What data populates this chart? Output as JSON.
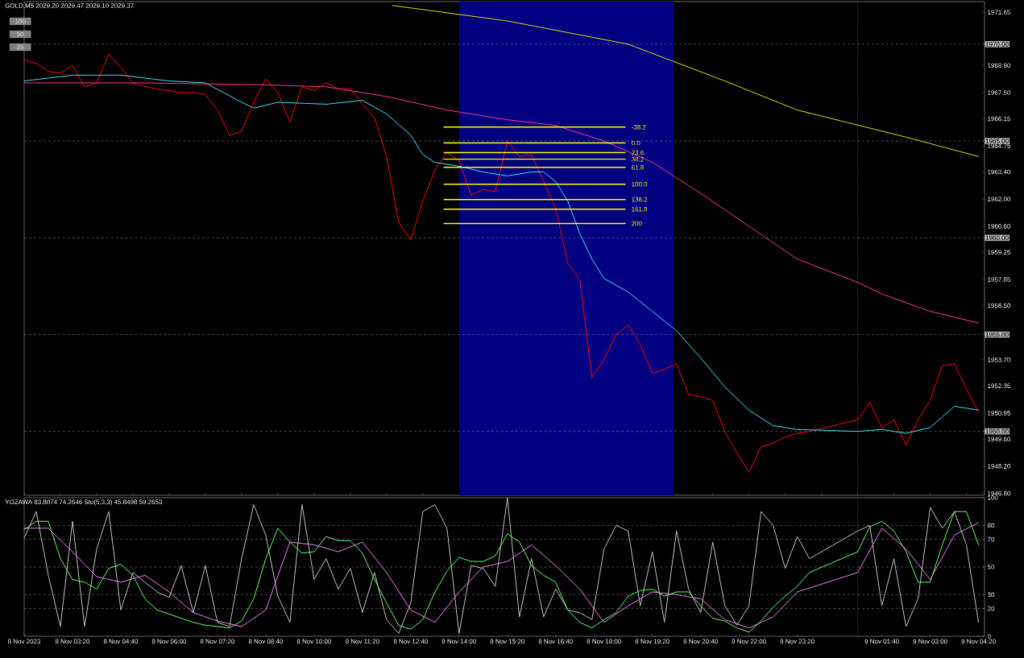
{
  "chart_data": [
    {
      "type": "line",
      "title": "GOLD,M5  2029.20 2029.47 2029.10 2029.37",
      "annotations": [
        "100",
        "50",
        "25"
      ],
      "xlim": [
        "2023-11-08T02:00",
        "2023-11-09T04:30"
      ],
      "ylim": [
        1946.7,
        1972.2
      ],
      "yticks": [
        {
          "value": 1971.65,
          "label": "1971.65"
        },
        {
          "value": 1968.9,
          "label": "1968.90"
        },
        {
          "value": 1967.5,
          "label": "1967.50"
        },
        {
          "value": 1966.15,
          "label": "1966.15"
        },
        {
          "value": 1964.75,
          "label": "1964.75"
        },
        {
          "value": 1963.4,
          "label": "1963.40"
        },
        {
          "value": 1962.0,
          "label": "1962.00"
        },
        {
          "value": 1960.6,
          "label": "1960.60"
        },
        {
          "value": 1959.25,
          "label": "1959.25"
        },
        {
          "value": 1957.85,
          "label": "1957.85"
        },
        {
          "value": 1956.5,
          "label": "1956.50"
        },
        {
          "value": 1953.7,
          "label": "1953.70"
        },
        {
          "value": 1952.35,
          "label": "1952.35"
        },
        {
          "value": 1950.95,
          "label": "1950.95"
        },
        {
          "value": 1949.6,
          "label": "1949.60"
        },
        {
          "value": 1948.2,
          "label": "1948.20"
        },
        {
          "value": 1946.8,
          "label": "1946.80"
        }
      ],
      "tick_labels": "y",
      "ref_lines": [
        {
          "axis": "y",
          "value": 1970,
          "label": "1970.00",
          "color": "#c0c0c0",
          "line_style": "dashed"
        },
        {
          "axis": "y",
          "value": 1965,
          "label": "1965.00",
          "color": "#c0c0c0",
          "line_style": "dashed"
        },
        {
          "axis": "y",
          "value": 1960,
          "label": "1960.00",
          "color": "#c0c0c0",
          "line_style": "dashed"
        },
        {
          "axis": "y",
          "value": 1955,
          "label": "1955.00",
          "color": "#c0c0c0",
          "line_style": "dashed"
        },
        {
          "axis": "y",
          "value": 1950,
          "label": "1950.00",
          "color": "#c0c0c0",
          "line_style": "dashed"
        },
        {
          "axis": "x",
          "value": "2023-11-09T01:00",
          "color": "#ffffff",
          "line_style": "dotted"
        }
      ],
      "bands": [
        {
          "axis": "x",
          "from": "2023-11-08T14:00",
          "to": "2023-11-08T19:55",
          "color": "#000080"
        }
      ],
      "x": [
        "2023-11-08T02:00",
        "2023-11-08T02:20",
        "2023-11-08T02:40",
        "2023-11-08T03:00",
        "2023-11-08T03:20",
        "2023-11-08T03:40",
        "2023-11-08T04:00",
        "2023-11-08T04:20",
        "2023-11-08T04:40",
        "2023-11-08T05:00",
        "2023-11-08T05:20",
        "2023-11-08T05:40",
        "2023-11-08T06:00",
        "2023-11-08T06:20",
        "2023-11-08T06:40",
        "2023-11-08T07:00",
        "2023-11-08T07:20",
        "2023-11-08T07:40",
        "2023-11-08T08:00",
        "2023-11-08T08:20",
        "2023-11-08T08:40",
        "2023-11-08T09:00",
        "2023-11-08T09:20",
        "2023-11-08T09:40",
        "2023-11-08T10:00",
        "2023-11-08T10:20",
        "2023-11-08T10:40",
        "2023-11-08T11:00",
        "2023-11-08T11:20",
        "2023-11-08T11:40",
        "2023-11-08T12:00",
        "2023-11-08T12:20",
        "2023-11-08T12:40",
        "2023-11-08T13:00",
        "2023-11-08T13:20",
        "2023-11-08T13:40",
        "2023-11-08T14:00",
        "2023-11-08T14:20",
        "2023-11-08T14:40",
        "2023-11-08T15:00",
        "2023-11-08T15:20",
        "2023-11-08T15:40",
        "2023-11-08T16:00",
        "2023-11-08T16:20",
        "2023-11-08T16:40",
        "2023-11-08T17:00",
        "2023-11-08T17:20",
        "2023-11-08T17:40",
        "2023-11-08T18:00",
        "2023-11-08T18:20",
        "2023-11-08T18:40",
        "2023-11-08T19:00",
        "2023-11-08T19:20",
        "2023-11-08T19:40",
        "2023-11-08T20:00",
        "2023-11-08T20:20",
        "2023-11-08T20:40",
        "2023-11-08T21:00",
        "2023-11-08T21:20",
        "2023-11-08T21:40",
        "2023-11-08T22:00",
        "2023-11-08T22:20",
        "2023-11-08T22:40",
        "2023-11-08T23:00",
        "2023-11-08T23:20",
        "2023-11-08T23:40",
        "2023-11-09T01:00",
        "2023-11-09T01:20",
        "2023-11-09T01:40",
        "2023-11-09T02:00",
        "2023-11-09T02:20",
        "2023-11-09T02:40",
        "2023-11-09T03:00",
        "2023-11-09T03:20",
        "2023-11-09T03:40",
        "2023-11-09T04:00",
        "2023-11-09T04:20"
      ],
      "series": [
        {
          "color": "#ff0000",
          "values": [
            1969.2,
            1969.0,
            1968.6,
            1968.5,
            1968.9,
            1967.8,
            1968.0,
            1969.5,
            1968.8,
            1968.0,
            1967.8,
            1967.7,
            1967.6,
            1967.5,
            1967.5,
            1967.4,
            1966.6,
            1965.3,
            1965.5,
            1967.0,
            1968.2,
            1967.5,
            1966.0,
            1967.8,
            1967.6,
            1968.0,
            1967.7,
            1967.7,
            1966.9,
            1966.2,
            1964.2,
            1960.8,
            1959.9,
            1961.9,
            1963.5,
            1964.4,
            1964.0,
            1962.2,
            1962.5,
            1962.4,
            1965.0,
            1964.2,
            1964.3,
            1962.9,
            1961.5,
            1958.7,
            1957.8,
            1952.8,
            1953.7,
            1955.0,
            1955.5,
            1954.5,
            1953.0,
            1953.2,
            1953.5,
            1951.9,
            1951.8,
            1951.6,
            1950.0,
            1948.9,
            1947.9,
            1949.2,
            1949.4,
            1949.7,
            1949.9,
            1950.0,
            1950.6,
            1951.5,
            1950.2,
            1950.6,
            1949.3,
            1950.6,
            1951.6,
            1953.4,
            1953.5,
            1952.2,
            1951.0
          ]
        },
        {
          "color": "#40e0f0",
          "x": [
            "2023-11-08T02:00",
            "2023-11-08T03:20",
            "2023-11-08T04:40",
            "2023-11-08T06:00",
            "2023-11-08T07:00",
            "2023-11-08T08:00",
            "2023-11-08T08:20",
            "2023-11-08T09:00",
            "2023-11-08T10:20",
            "2023-11-08T11:20",
            "2023-11-08T12:00",
            "2023-11-08T12:40",
            "2023-11-08T13:00",
            "2023-11-08T13:20",
            "2023-11-08T14:00",
            "2023-11-08T14:40",
            "2023-11-08T15:20",
            "2023-11-08T16:00",
            "2023-11-08T16:20",
            "2023-11-08T16:40",
            "2023-11-08T17:00",
            "2023-11-08T17:20",
            "2023-11-08T17:40",
            "2023-11-08T18:00",
            "2023-11-08T18:40",
            "2023-11-08T19:20",
            "2023-11-08T20:00",
            "2023-11-08T20:40",
            "2023-11-08T21:20",
            "2023-11-08T22:00",
            "2023-11-08T22:40",
            "2023-11-08T23:20",
            "2023-11-09T01:00",
            "2023-11-09T01:40",
            "2023-11-09T02:20",
            "2023-11-09T03:00",
            "2023-11-09T03:40",
            "2023-11-09T04:20"
          ],
          "values": [
            1968.1,
            1968.4,
            1968.4,
            1968.1,
            1968.0,
            1967.0,
            1966.7,
            1967.0,
            1966.9,
            1967.1,
            1966.4,
            1965.3,
            1964.3,
            1963.9,
            1963.7,
            1963.4,
            1963.2,
            1963.4,
            1963.4,
            1962.9,
            1961.9,
            1960.2,
            1958.9,
            1957.9,
            1957.2,
            1956.2,
            1955.2,
            1953.8,
            1952.3,
            1951.1,
            1950.3,
            1950.1,
            1950.0,
            1950.1,
            1949.9,
            1950.2,
            1951.3,
            1951.1
          ]
        },
        {
          "color": "#ff3399",
          "x": [
            "2023-11-08T02:00",
            "2023-11-08T05:20",
            "2023-11-08T08:40",
            "2023-11-08T10:20",
            "2023-11-08T12:00",
            "2023-11-08T13:40",
            "2023-11-08T15:20",
            "2023-11-08T16:40",
            "2023-11-08T18:00",
            "2023-11-08T19:20",
            "2023-11-08T20:40",
            "2023-11-08T22:00",
            "2023-11-08T23:20",
            "2023-11-09T01:00",
            "2023-11-09T01:40",
            "2023-11-09T03:00",
            "2023-11-09T03:40",
            "2023-11-09T04:20"
          ],
          "values": [
            1968.0,
            1968.0,
            1967.9,
            1967.8,
            1967.3,
            1966.6,
            1966.1,
            1965.8,
            1965.0,
            1963.9,
            1962.3,
            1960.6,
            1958.9,
            1957.7,
            1957.1,
            1956.2,
            1955.9,
            1955.6
          ]
        },
        {
          "color": "#ffff00",
          "line_style": "dotted",
          "x": [
            "2023-11-08T12:10",
            "2023-11-08T15:20",
            "2023-11-08T18:40",
            "2023-11-08T21:20",
            "2023-11-08T23:20",
            "2023-11-09T02:20",
            "2023-11-09T04:20"
          ],
          "values": [
            1972.0,
            1971.2,
            1970.0,
            1968.1,
            1966.6,
            1965.2,
            1964.2
          ]
        },
        {
          "name": "-38.2",
          "color": "#ffff00",
          "x": [
            "2023-11-08T13:35",
            "2023-11-08T18:35"
          ],
          "values": [
            1965.72,
            1965.72
          ]
        },
        {
          "name": "0.0",
          "color": "#ffff00",
          "x": [
            "2023-11-08T13:35",
            "2023-11-08T18:35"
          ],
          "values": [
            1964.9,
            1964.9
          ]
        },
        {
          "name": "23.6",
          "color": "#ffff00",
          "x": [
            "2023-11-08T13:35",
            "2023-11-08T18:35"
          ],
          "values": [
            1964.4,
            1964.4
          ]
        },
        {
          "name": "38.2",
          "color": "#ffff00",
          "x": [
            "2023-11-08T13:35",
            "2023-11-08T18:35"
          ],
          "values": [
            1964.06,
            1964.06
          ]
        },
        {
          "name": "61.8",
          "color": "#ffff00",
          "x": [
            "2023-11-08T13:35",
            "2023-11-08T18:35"
          ],
          "values": [
            1963.64,
            1963.64
          ]
        },
        {
          "name": "100.0",
          "color": "#ffff00",
          "x": [
            "2023-11-08T13:35",
            "2023-11-08T18:35"
          ],
          "values": [
            1962.77,
            1962.77
          ]
        },
        {
          "name": "138.2",
          "color": "#ffff00",
          "x": [
            "2023-11-08T13:35",
            "2023-11-08T18:35"
          ],
          "values": [
            1961.98,
            1961.98
          ]
        },
        {
          "name": "161.8",
          "color": "#ffff00",
          "x": [
            "2023-11-08T13:35",
            "2023-11-08T18:35"
          ],
          "values": [
            1961.48,
            1961.48
          ]
        },
        {
          "name": "200",
          "color": "#ffff00",
          "x": [
            "2023-11-08T13:35",
            "2023-11-08T18:35"
          ],
          "values": [
            1960.74,
            1960.74
          ]
        }
      ]
    },
    {
      "type": "line",
      "title": "YOZAWA 83.8074 74.2646  Sto(5,3,3) 45.8498 59.2653",
      "xlim": [
        "2023-11-08T02:00",
        "2023-11-09T04:30"
      ],
      "ylim": [
        0,
        100
      ],
      "xticks": [
        {
          "value": "2023-11-08T02:00",
          "label": "8 Nov 2023"
        },
        {
          "value": "2023-11-08T03:20",
          "label": "8 Nov 03:20"
        },
        {
          "value": "2023-11-08T04:40",
          "label": "8 Nov 04:40"
        },
        {
          "value": "2023-11-08T06:00",
          "label": "8 Nov 06:00"
        },
        {
          "value": "2023-11-08T07:20",
          "label": "8 Nov 07:20"
        },
        {
          "value": "2023-11-08T08:40",
          "label": "8 Nov 08:40"
        },
        {
          "value": "2023-11-08T10:00",
          "label": "8 Nov 10:00"
        },
        {
          "value": "2023-11-08T11:20",
          "label": "8 Nov 11:20"
        },
        {
          "value": "2023-11-08T12:40",
          "label": "8 Nov 12:40"
        },
        {
          "value": "2023-11-08T14:00",
          "label": "8 Nov 14:00"
        },
        {
          "value": "2023-11-08T15:20",
          "label": "8 Nov 15:20"
        },
        {
          "value": "2023-11-08T16:40",
          "label": "8 Nov 16:40"
        },
        {
          "value": "2023-11-08T18:00",
          "label": "8 Nov 18:00"
        },
        {
          "value": "2023-11-08T19:20",
          "label": "8 Nov 19:20"
        },
        {
          "value": "2023-11-08T20:40",
          "label": "8 Nov 20:40"
        },
        {
          "value": "2023-11-08T22:00",
          "label": "8 Nov 22:00"
        },
        {
          "value": "2023-11-08T23:20",
          "label": "8 Nov 23:20"
        },
        {
          "value": "2023-11-09T01:40",
          "label": "9 Nov 01:40"
        },
        {
          "value": "2023-11-09T03:00",
          "label": "9 Nov 03:00"
        },
        {
          "value": "2023-11-09T04:20",
          "label": "9 Nov 04:20"
        }
      ],
      "yticks": [
        0,
        20,
        30,
        50,
        70,
        80,
        100
      ],
      "ref_lines": [
        {
          "axis": "y",
          "value": 20,
          "color": "#c0c0c0",
          "line_style": "dashed"
        },
        {
          "axis": "y",
          "value": 30,
          "color": "#c0c0c0",
          "line_style": "dashed"
        },
        {
          "axis": "y",
          "value": 50,
          "color": "#c0c0c0",
          "line_style": "dashed"
        },
        {
          "axis": "y",
          "value": 70,
          "color": "#c0c0c0",
          "line_style": "dashed"
        },
        {
          "axis": "y",
          "value": 80,
          "color": "#c0c0c0",
          "line_style": "dashed"
        },
        {
          "axis": "x",
          "value": "2023-11-09T01:00",
          "color": "#ffffff",
          "line_style": "dotted"
        }
      ],
      "x": [
        "2023-11-08T02:00",
        "2023-11-08T02:20",
        "2023-11-08T02:40",
        "2023-11-08T03:00",
        "2023-11-08T03:20",
        "2023-11-08T03:40",
        "2023-11-08T04:00",
        "2023-11-08T04:20",
        "2023-11-08T04:40",
        "2023-11-08T05:00",
        "2023-11-08T05:20",
        "2023-11-08T05:40",
        "2023-11-08T06:00",
        "2023-11-08T06:20",
        "2023-11-08T06:40",
        "2023-11-08T07:00",
        "2023-11-08T07:20",
        "2023-11-08T07:40",
        "2023-11-08T08:00",
        "2023-11-08T08:20",
        "2023-11-08T08:40",
        "2023-11-08T09:00",
        "2023-11-08T09:20",
        "2023-11-08T09:40",
        "2023-11-08T10:00",
        "2023-11-08T10:20",
        "2023-11-08T10:40",
        "2023-11-08T11:00",
        "2023-11-08T11:20",
        "2023-11-08T11:40",
        "2023-11-08T12:00",
        "2023-11-08T12:20",
        "2023-11-08T12:40",
        "2023-11-08T13:00",
        "2023-11-08T13:20",
        "2023-11-08T13:40",
        "2023-11-08T14:00",
        "2023-11-08T14:20",
        "2023-11-08T14:40",
        "2023-11-08T15:00",
        "2023-11-08T15:20",
        "2023-11-08T15:40",
        "2023-11-08T16:00",
        "2023-11-08T16:20",
        "2023-11-08T16:40",
        "2023-11-08T17:00",
        "2023-11-08T17:20",
        "2023-11-08T17:40",
        "2023-11-08T18:00",
        "2023-11-08T18:20",
        "2023-11-08T18:40",
        "2023-11-08T19:00",
        "2023-11-08T19:20",
        "2023-11-08T19:40",
        "2023-11-08T20:00",
        "2023-11-08T20:20",
        "2023-11-08T20:40",
        "2023-11-08T21:00",
        "2023-11-08T21:20",
        "2023-11-08T21:40",
        "2023-11-08T22:00",
        "2023-11-08T22:20",
        "2023-11-08T22:40",
        "2023-11-08T23:00",
        "2023-11-08T23:20",
        "2023-11-08T23:40",
        "2023-11-09T01:00",
        "2023-11-09T01:20",
        "2023-11-09T01:40",
        "2023-11-09T02:00",
        "2023-11-09T02:20",
        "2023-11-09T02:40",
        "2023-11-09T03:00",
        "2023-11-09T03:20",
        "2023-11-09T03:40",
        "2023-11-09T04:00",
        "2023-11-09T04:20"
      ],
      "series": [
        {
          "color": "#c0c0c0",
          "values": [
            71,
            90,
            44,
            7,
            83,
            7,
            63,
            90,
            19,
            46,
            39,
            32,
            28,
            51,
            17,
            51,
            10,
            7,
            56,
            95,
            73,
            29,
            10,
            95,
            41,
            56,
            34,
            49,
            17,
            46,
            12,
            2,
            24,
            90,
            95,
            78,
            2,
            51,
            49,
            36,
            100,
            14,
            56,
            14,
            34,
            19,
            17,
            12,
            63,
            80,
            76,
            22,
            61,
            10,
            76,
            34,
            17,
            68,
            22,
            8,
            22,
            90,
            80,
            49,
            72,
            56,
            76,
            80,
            22,
            56,
            7,
            27,
            93,
            78,
            90,
            66,
            10
          ]
        },
        {
          "color": "#66ff66",
          "values": [
            77,
            83,
            83,
            56,
            41,
            39,
            34,
            49,
            52,
            44,
            27,
            19,
            16,
            13,
            10,
            8,
            7,
            6,
            11,
            27,
            56,
            78,
            68,
            60,
            61,
            72,
            69,
            69,
            60,
            41,
            24,
            8,
            5,
            12,
            32,
            47,
            57,
            54,
            54,
            58,
            74,
            68,
            51,
            44,
            39,
            19,
            10,
            6,
            12,
            17,
            29,
            33,
            34,
            29,
            32,
            32,
            22,
            13,
            11,
            6,
            3,
            11,
            21,
            29,
            36,
            46,
            61,
            79,
            83,
            76,
            61,
            39,
            39,
            66,
            90,
            90,
            66
          ]
        },
        {
          "color": "#ee82ee",
          "x": [
            "2023-11-08T02:00",
            "2023-11-08T02:40",
            "2023-11-08T03:20",
            "2023-11-08T04:00",
            "2023-11-08T04:40",
            "2023-11-08T05:20",
            "2023-11-08T06:00",
            "2023-11-08T06:40",
            "2023-11-08T07:20",
            "2023-11-08T08:00",
            "2023-11-08T08:40",
            "2023-11-08T09:20",
            "2023-11-08T10:00",
            "2023-11-08T10:40",
            "2023-11-08T11:20",
            "2023-11-08T12:00",
            "2023-11-08T12:40",
            "2023-11-08T13:20",
            "2023-11-08T14:00",
            "2023-11-08T14:40",
            "2023-11-08T15:20",
            "2023-11-08T16:00",
            "2023-11-08T16:40",
            "2023-11-08T17:20",
            "2023-11-08T18:00",
            "2023-11-08T18:40",
            "2023-11-08T19:20",
            "2023-11-08T20:00",
            "2023-11-08T20:40",
            "2023-11-08T21:20",
            "2023-11-08T22:00",
            "2023-11-08T22:40",
            "2023-11-08T23:20",
            "2023-11-09T01:00",
            "2023-11-09T01:40",
            "2023-11-09T02:20",
            "2023-11-09T03:00",
            "2023-11-09T03:40",
            "2023-11-09T04:20"
          ],
          "values": [
            78,
            78,
            61,
            43,
            39,
            44,
            32,
            17,
            11,
            7,
            19,
            68,
            66,
            61,
            68,
            46,
            19,
            10,
            32,
            50,
            54,
            66,
            51,
            34,
            10,
            22,
            32,
            30,
            27,
            12,
            6,
            14,
            32,
            46,
            78,
            63,
            41,
            73,
            82
          ]
        }
      ]
    }
  ]
}
